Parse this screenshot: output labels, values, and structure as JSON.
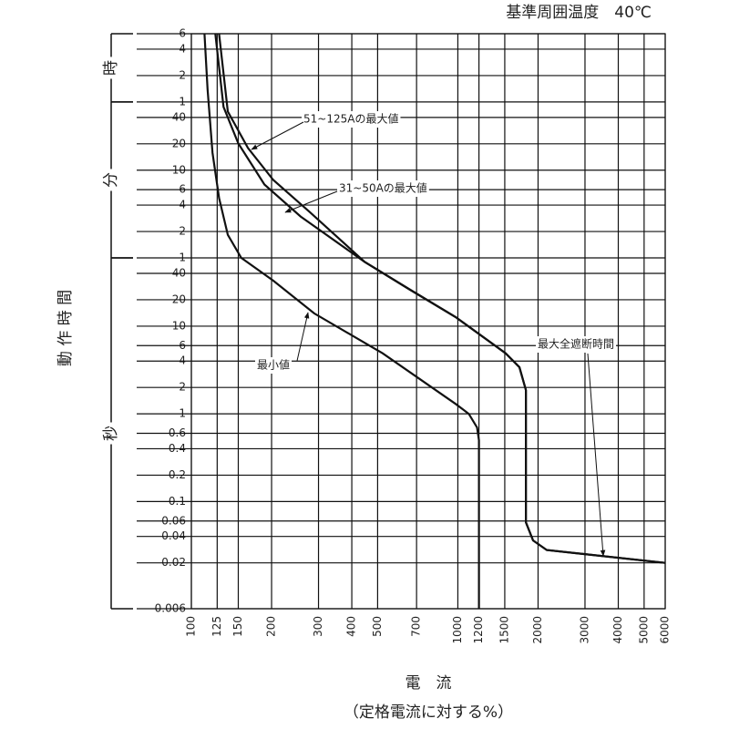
{
  "chart_data": {
    "type": "line",
    "title": "基準周囲温度　40℃",
    "x_label": "電　流",
    "x_sublabel": "（定格電流に対する%）",
    "y_label": "動 作 時 間",
    "log_x": true,
    "log_y": true,
    "grid": true,
    "color": "#111",
    "xlim": [
      100,
      6000
    ],
    "xticks": [
      100,
      125,
      150,
      200,
      300,
      400,
      500,
      700,
      1000,
      1200,
      1500,
      2000,
      3000,
      4000,
      5000,
      6000
    ],
    "ylim": [
      0.006,
      21600
    ],
    "yticks": [
      0.006,
      0.02,
      0.04,
      0.06,
      0.1,
      0.2,
      0.4,
      0.6,
      1,
      2,
      4,
      6,
      10,
      20,
      40,
      {
        "value": 60,
        "label": "1"
      },
      {
        "value": 120,
        "label": "2"
      },
      {
        "value": 240,
        "label": "4"
      },
      {
        "value": 360,
        "label": "6"
      },
      {
        "value": 600,
        "label": "10"
      },
      {
        "value": 1200,
        "label": "20"
      },
      {
        "value": 2400,
        "label": "40"
      },
      {
        "value": 3600,
        "label": "1"
      },
      {
        "value": 7200,
        "label": "2"
      },
      {
        "value": 14400,
        "label": "4"
      },
      {
        "value": 21600,
        "label": "6"
      }
    ],
    "time_units": [
      {
        "label": "秒",
        "from": 0.006,
        "to": 60
      },
      {
        "label": "分",
        "from": 60,
        "to": 3600
      },
      {
        "label": "時",
        "from": 3600,
        "to": 21600
      }
    ],
    "series": [
      {
        "name": "51~125Aの最大値",
        "x": [
          127,
          137,
          163,
          203,
          278,
          447,
          662,
          980,
          1512,
          1702,
          1800,
          1800,
          1915,
          2156,
          6000
        ],
        "values": [
          21600,
          2800,
          1075,
          464,
          200,
          54,
          26,
          12.7,
          4.9,
          3.4,
          1.87,
          0.058,
          0.036,
          0.028,
          0.02
        ]
      },
      {
        "name": "31~50Aの最大値",
        "x": [
          123,
          132,
          150,
          188,
          257,
          447,
          662,
          980,
          1512,
          1702,
          1800,
          1800,
          1915,
          2156,
          6000
        ],
        "values": [
          21600,
          3160,
          1212,
          412,
          178,
          54,
          26,
          12.7,
          4.9,
          3.4,
          1.87,
          0.058,
          0.036,
          0.028,
          0.02
        ]
      },
      {
        "name": "最小値",
        "x": [
          112,
          115,
          120,
          127,
          137,
          154,
          203,
          289,
          522,
          980,
          1100,
          1180,
          1200,
          1200
        ],
        "values": [
          21600,
          5000,
          950,
          290,
          110,
          60,
          33,
          14,
          4.9,
          1.3,
          1.0,
          0.7,
          0.5,
          0.006
        ]
      }
    ],
    "annotation": "最大全遮断時間"
  }
}
